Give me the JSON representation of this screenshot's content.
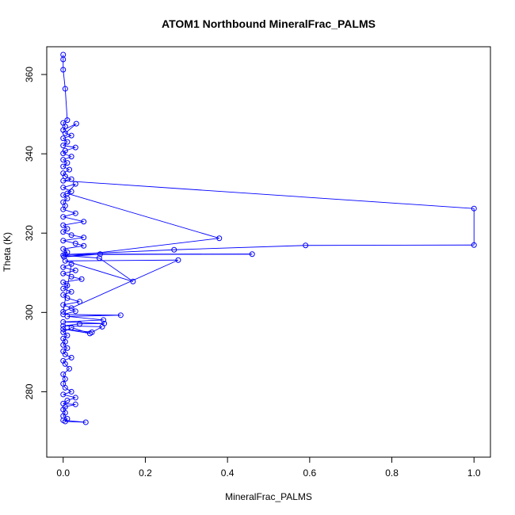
{
  "chart_data": {
    "type": "line",
    "title": "ATOM1 Northbound MineralFrac_PALMS",
    "xlabel": "MineralFrac_PALMS",
    "ylabel": "Theta (K)",
    "xlim": [
      -0.04,
      1.04
    ],
    "ylim": [
      263.5,
      367
    ],
    "xticks": [
      0.0,
      0.2,
      0.4,
      0.6,
      0.8,
      1.0
    ],
    "xtick_labels": [
      "0.0",
      "0.2",
      "0.4",
      "0.6",
      "0.8",
      "1.0"
    ],
    "yticks": [
      280,
      300,
      320,
      340,
      360
    ],
    "ytick_labels": [
      "280",
      "300",
      "320",
      "340",
      "360"
    ],
    "grid": false,
    "series_color": "#0000ff",
    "marker": "open-circle",
    "series": [
      {
        "points": [
          [
            0.0,
            365.0
          ],
          [
            0.0,
            363.8
          ],
          [
            0.0,
            361.2
          ],
          [
            0.005,
            356.4
          ],
          [
            0.01,
            348.5
          ],
          [
            0.0,
            347.8
          ],
          [
            0.005,
            346.9
          ],
          [
            0.0,
            346.0
          ],
          [
            0.032,
            347.6
          ],
          [
            0.005,
            345.2
          ],
          [
            0.02,
            344.6
          ],
          [
            0.0,
            343.9
          ],
          [
            0.01,
            343.0
          ],
          [
            0.0,
            342.1
          ],
          [
            0.03,
            341.6
          ],
          [
            0.005,
            340.8
          ],
          [
            0.0,
            340.1
          ],
          [
            0.02,
            339.3
          ],
          [
            0.0,
            338.5
          ],
          [
            0.01,
            337.7
          ],
          [
            0.0,
            336.8
          ],
          [
            0.015,
            336.0
          ],
          [
            0.0,
            335.1
          ],
          [
            0.005,
            334.3
          ],
          [
            0.02,
            333.6
          ],
          [
            0.0,
            333.2
          ],
          [
            1.0,
            326.2
          ],
          [
            1.0,
            317.0
          ],
          [
            0.59,
            316.9
          ],
          [
            0.27,
            315.8
          ],
          [
            0.005,
            314.6
          ],
          [
            0.46,
            314.7
          ],
          [
            0.09,
            314.7
          ],
          [
            0.002,
            314.0
          ],
          [
            0.38,
            318.7
          ],
          [
            0.01,
            330.0
          ],
          [
            0.03,
            332.4
          ],
          [
            0.0,
            331.5
          ],
          [
            0.02,
            330.5
          ],
          [
            0.0,
            329.6
          ],
          [
            0.01,
            328.7
          ],
          [
            0.0,
            327.8
          ],
          [
            0.005,
            326.9
          ],
          [
            0.0,
            326.0
          ],
          [
            0.03,
            325.0
          ],
          [
            0.0,
            324.1
          ],
          [
            0.05,
            322.9
          ],
          [
            0.0,
            322.0
          ],
          [
            0.01,
            321.1
          ],
          [
            0.0,
            320.3
          ],
          [
            0.02,
            319.5
          ],
          [
            0.05,
            318.9
          ],
          [
            0.0,
            318.1
          ],
          [
            0.03,
            317.4
          ],
          [
            0.05,
            316.8
          ],
          [
            0.0,
            316.0
          ],
          [
            0.01,
            315.2
          ],
          [
            0.0,
            314.4
          ],
          [
            0.088,
            313.7
          ],
          [
            0.17,
            307.8
          ],
          [
            0.005,
            313.0
          ],
          [
            0.28,
            313.2
          ],
          [
            0.0,
            300.2
          ],
          [
            0.02,
            312.2
          ],
          [
            0.0,
            311.4
          ],
          [
            0.03,
            310.6
          ],
          [
            0.0,
            309.8
          ],
          [
            0.02,
            309.0
          ],
          [
            0.045,
            308.4
          ],
          [
            0.0,
            307.6
          ],
          [
            0.01,
            306.8
          ],
          [
            0.0,
            306.0
          ],
          [
            0.02,
            305.2
          ],
          [
            0.0,
            304.4
          ],
          [
            0.01,
            303.6
          ],
          [
            0.04,
            302.7
          ],
          [
            0.0,
            301.9
          ],
          [
            0.02,
            301.1
          ],
          [
            0.03,
            300.3
          ],
          [
            0.0,
            299.5
          ],
          [
            0.14,
            299.3
          ],
          [
            0.01,
            299.0
          ],
          [
            0.098,
            298.1
          ],
          [
            0.0,
            297.6
          ],
          [
            0.1,
            297.2
          ],
          [
            0.04,
            297.1
          ],
          [
            0.0,
            296.6
          ],
          [
            0.095,
            296.4
          ],
          [
            0.07,
            295.0
          ],
          [
            0.0,
            295.8
          ],
          [
            0.065,
            294.7
          ],
          [
            0.02,
            296.2
          ],
          [
            0.0,
            295.0
          ],
          [
            0.01,
            294.2
          ],
          [
            0.0,
            293.4
          ],
          [
            0.005,
            292.6
          ],
          [
            0.0,
            291.8
          ],
          [
            0.01,
            291.0
          ],
          [
            0.0,
            290.2
          ],
          [
            0.005,
            289.4
          ],
          [
            0.02,
            288.6
          ],
          [
            0.0,
            287.8
          ],
          [
            0.005,
            287.0
          ],
          [
            0.015,
            285.8
          ],
          [
            0.0,
            284.4
          ],
          [
            0.005,
            283.2
          ],
          [
            0.0,
            282.0
          ],
          [
            0.005,
            281.0
          ],
          [
            0.02,
            280.0
          ],
          [
            0.0,
            279.3
          ],
          [
            0.03,
            278.5
          ],
          [
            0.01,
            277.8
          ],
          [
            0.0,
            277.0
          ],
          [
            0.03,
            276.8
          ],
          [
            0.005,
            276.2
          ],
          [
            0.0,
            275.5
          ],
          [
            0.005,
            274.7
          ],
          [
            0.0,
            273.9
          ],
          [
            0.01,
            273.2
          ],
          [
            0.005,
            272.5
          ],
          [
            0.055,
            272.3
          ],
          [
            0.0,
            272.8
          ]
        ]
      }
    ]
  }
}
